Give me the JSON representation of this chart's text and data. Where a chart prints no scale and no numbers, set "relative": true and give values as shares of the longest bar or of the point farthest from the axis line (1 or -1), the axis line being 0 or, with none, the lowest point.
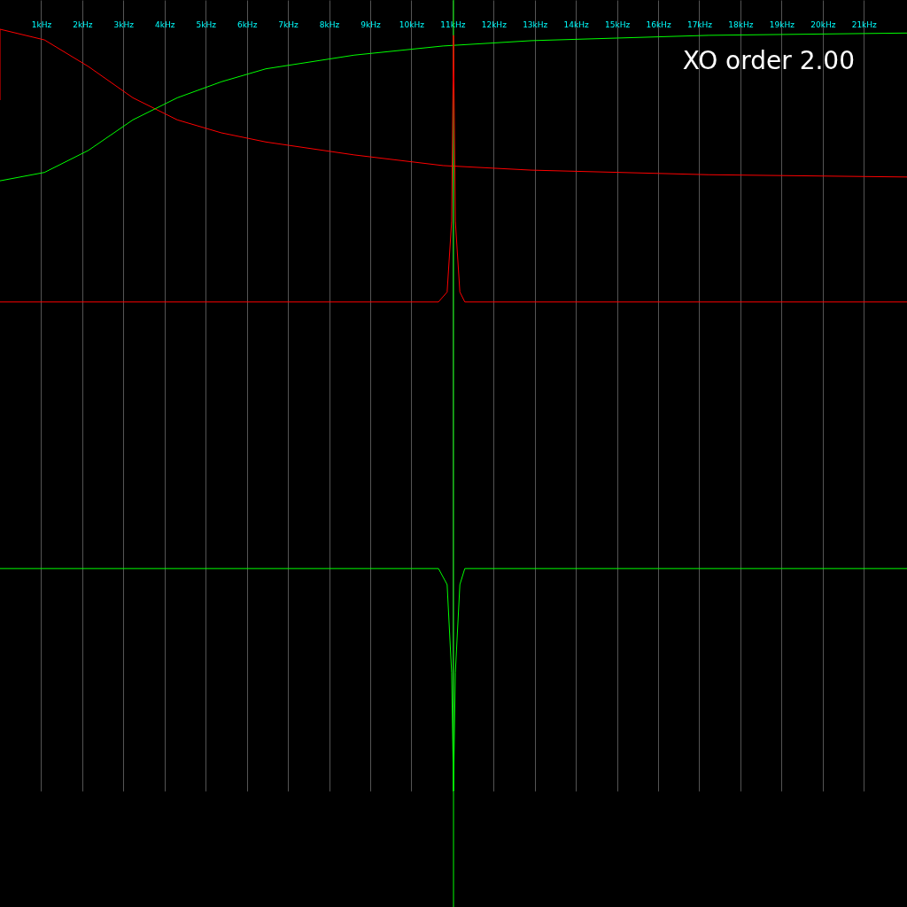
{
  "chart_data": {
    "type": "line",
    "relative": true,
    "xlim": [
      0,
      22.05
    ],
    "xticks": [
      {
        "value": 1,
        "label": "1kHz"
      },
      {
        "value": 2,
        "label": "2kHz"
      },
      {
        "value": 3,
        "label": "3kHz"
      },
      {
        "value": 4,
        "label": "4kHz"
      },
      {
        "value": 5,
        "label": "5kHz"
      },
      {
        "value": 6,
        "label": "6kHz"
      },
      {
        "value": 7,
        "label": "7kHz"
      },
      {
        "value": 8,
        "label": "8kHz"
      },
      {
        "value": 9,
        "label": "9kHz"
      },
      {
        "value": 10,
        "label": "10kHz"
      },
      {
        "value": 11,
        "label": "11kHz"
      },
      {
        "value": 12,
        "label": "12kHz"
      },
      {
        "value": 13,
        "label": "13kHz"
      },
      {
        "value": 14,
        "label": "14kHz"
      },
      {
        "value": 15,
        "label": "15kHz"
      },
      {
        "value": 16,
        "label": "16kHz"
      },
      {
        "value": 17,
        "label": "17kHz"
      },
      {
        "value": 18,
        "label": "18kHz"
      },
      {
        "value": 19,
        "label": "19kHz"
      },
      {
        "value": 20,
        "label": "20kHz"
      },
      {
        "value": 21,
        "label": "21kHz"
      }
    ],
    "tick_labels": "x",
    "grid": "x",
    "marker": "none",
    "line_style": "solid",
    "annotations": [
      "XO order  2.00"
    ],
    "ref_lines": [
      {
        "axis": "x",
        "value": 11.025,
        "color": "#00ff00"
      }
    ],
    "series": [
      {
        "color": "#ff0000",
        "x": [
          0,
          0,
          1.08,
          2.15,
          3.23,
          4.31,
          5.38,
          6.46,
          8.61,
          10.77,
          12.92,
          17.23,
          22.05
        ],
        "values": [
          0.907,
          1.0,
          0.986,
          0.951,
          0.91,
          0.881,
          0.864,
          0.852,
          0.835,
          0.821,
          0.815,
          0.809,
          0.806
        ]
      },
      {
        "color": "#00ff00",
        "x": [
          0,
          1.08,
          2.15,
          3.23,
          4.31,
          5.38,
          6.46,
          8.61,
          10.77,
          12.92,
          17.23,
          22.05
        ],
        "values": [
          0.801,
          0.812,
          0.841,
          0.881,
          0.91,
          0.931,
          0.948,
          0.966,
          0.978,
          0.985,
          0.992,
          0.995
        ]
      },
      {
        "color": "#ff0000",
        "x": [
          0,
          10.66,
          10.87,
          10.98,
          11.025,
          11.07,
          11.18,
          11.3,
          22.05
        ],
        "values": [
          0.642,
          0.642,
          0.655,
          0.748,
          0.992,
          0.748,
          0.655,
          0.642,
          0.642
        ]
      },
      {
        "color": "#00ff00",
        "x": [
          0,
          10.66,
          10.87,
          10.98,
          11.025,
          11.07,
          11.18,
          11.3,
          22.05
        ],
        "values": [
          0.292,
          0.292,
          0.271,
          0.155,
          0.0,
          0.155,
          0.271,
          0.292,
          0.292
        ]
      }
    ]
  }
}
